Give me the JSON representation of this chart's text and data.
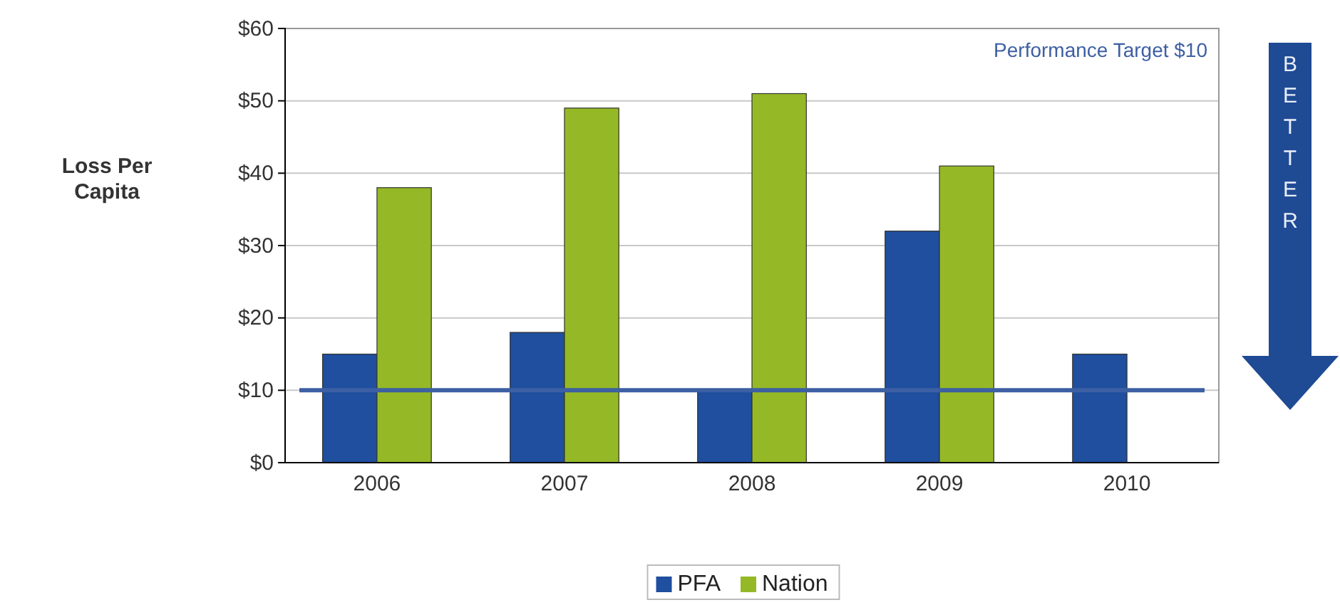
{
  "chart_data": {
    "type": "bar",
    "ylabel": "Loss Per Capita",
    "categories": [
      "2006",
      "2007",
      "2008",
      "2009",
      "2010"
    ],
    "series": [
      {
        "name": "PFA",
        "color": "#1f4f9e",
        "values": [
          15,
          18,
          10,
          32,
          15
        ]
      },
      {
        "name": "Nation",
        "color": "#95b926",
        "values": [
          38,
          49,
          51,
          41,
          null
        ]
      }
    ],
    "ylim": [
      0,
      60
    ],
    "yticks": [
      {
        "value": 0,
        "label": "$0"
      },
      {
        "value": 10,
        "label": "$10"
      },
      {
        "value": 20,
        "label": "$20"
      },
      {
        "value": 30,
        "label": "$30"
      },
      {
        "value": 40,
        "label": "$40"
      },
      {
        "value": 50,
        "label": "$50"
      },
      {
        "value": 60,
        "label": "$60"
      }
    ],
    "grid": "y",
    "legend": "bottom",
    "ref_lines": [
      {
        "axis": "y",
        "value": 10,
        "label": "Performance Target $10",
        "color": "#3d5fa3"
      }
    ],
    "annotations": [
      "BETTER"
    ]
  }
}
